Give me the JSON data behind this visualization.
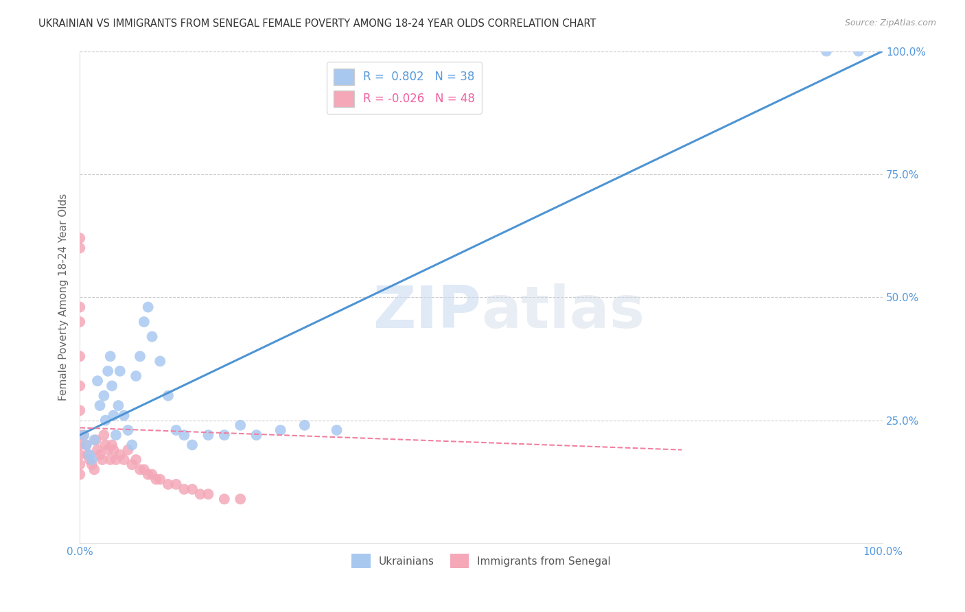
{
  "title": "UKRAINIAN VS IMMIGRANTS FROM SENEGAL FEMALE POVERTY AMONG 18-24 YEAR OLDS CORRELATION CHART",
  "source": "Source: ZipAtlas.com",
  "ylabel": "Female Poverty Among 18-24 Year Olds",
  "watermark_zip": "ZIP",
  "watermark_atlas": "atlas",
  "ukrainian_color": "#a8c8f0",
  "senegal_color": "#f4a8b8",
  "line_ukrainian_color": "#4d94d4",
  "line_senegal_color": "#f080a0",
  "tick_label_color": "#5599dd",
  "grid_color": "#cccccc",
  "background_color": "#ffffff",
  "xlim": [
    0,
    1
  ],
  "ylim": [
    0,
    1
  ],
  "ukrainians_x": [
    0.005,
    0.008,
    0.012,
    0.015,
    0.018,
    0.022,
    0.025,
    0.03,
    0.032,
    0.035,
    0.038,
    0.04,
    0.042,
    0.045,
    0.048,
    0.05,
    0.055,
    0.06,
    0.065,
    0.07,
    0.075,
    0.08,
    0.085,
    0.09,
    0.1,
    0.11,
    0.12,
    0.13,
    0.14,
    0.16,
    0.18,
    0.2,
    0.22,
    0.25,
    0.28,
    0.32,
    0.93,
    0.97
  ],
  "ukrainians_y": [
    0.22,
    0.2,
    0.18,
    0.17,
    0.21,
    0.33,
    0.28,
    0.3,
    0.25,
    0.35,
    0.38,
    0.32,
    0.26,
    0.22,
    0.28,
    0.35,
    0.26,
    0.23,
    0.2,
    0.34,
    0.38,
    0.45,
    0.48,
    0.42,
    0.37,
    0.3,
    0.23,
    0.22,
    0.2,
    0.22,
    0.22,
    0.24,
    0.22,
    0.23,
    0.24,
    0.23,
    1.0,
    1.0
  ],
  "senegal_x": [
    0.0,
    0.0,
    0.0,
    0.0,
    0.0,
    0.0,
    0.0,
    0.0,
    0.0,
    0.0,
    0.0,
    0.0,
    0.005,
    0.008,
    0.01,
    0.012,
    0.015,
    0.018,
    0.02,
    0.022,
    0.025,
    0.028,
    0.03,
    0.032,
    0.035,
    0.038,
    0.04,
    0.042,
    0.045,
    0.05,
    0.055,
    0.06,
    0.065,
    0.07,
    0.075,
    0.08,
    0.085,
    0.09,
    0.095,
    0.1,
    0.11,
    0.12,
    0.13,
    0.14,
    0.15,
    0.16,
    0.18,
    0.2
  ],
  "senegal_y": [
    0.62,
    0.6,
    0.48,
    0.45,
    0.38,
    0.32,
    0.27,
    0.22,
    0.2,
    0.18,
    0.16,
    0.14,
    0.22,
    0.2,
    0.18,
    0.17,
    0.16,
    0.15,
    0.21,
    0.19,
    0.18,
    0.17,
    0.22,
    0.2,
    0.19,
    0.17,
    0.2,
    0.19,
    0.17,
    0.18,
    0.17,
    0.19,
    0.16,
    0.17,
    0.15,
    0.15,
    0.14,
    0.14,
    0.13,
    0.13,
    0.12,
    0.12,
    0.11,
    0.11,
    0.1,
    0.1,
    0.09,
    0.09
  ],
  "ukr_line_x0": 0.0,
  "ukr_line_y0": 0.22,
  "ukr_line_x1": 1.0,
  "ukr_line_y1": 1.0,
  "sen_line_x0": 0.0,
  "sen_line_y0": 0.235,
  "sen_line_x1": 0.75,
  "sen_line_y1": 0.19,
  "legend_r_ukr": "R =  0.802",
  "legend_n_ukr": "N = 38",
  "legend_r_sen": "R = -0.026",
  "legend_n_sen": "N = 48",
  "label_ukrainians": "Ukrainians",
  "label_senegal": "Immigrants from Senegal"
}
